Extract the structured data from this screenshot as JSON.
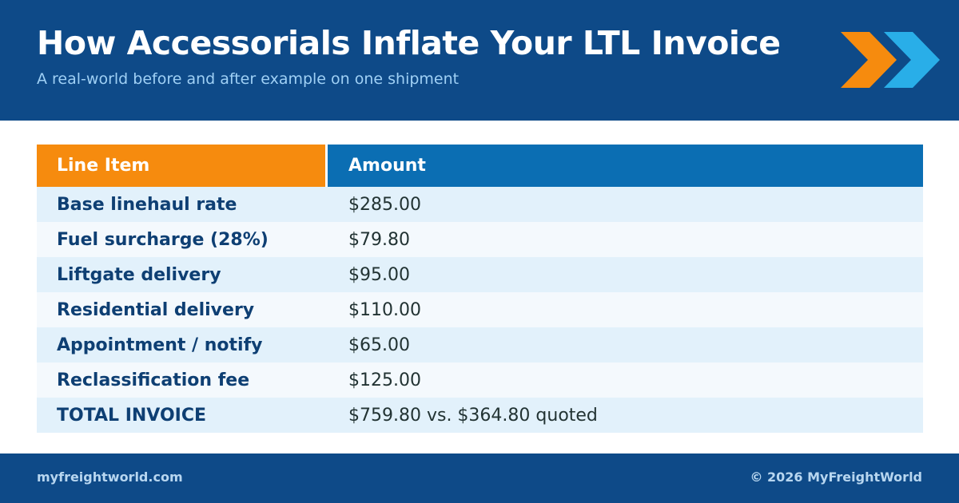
{
  "header": {
    "title": "How Accessorials Inflate Your LTL Invoice",
    "subtitle": "A real-world before and after example on one shipment"
  },
  "table": {
    "columns": [
      "Line Item",
      "Amount"
    ],
    "rows": [
      [
        "Base linehaul rate",
        "$285.00"
      ],
      [
        "Fuel surcharge (28%)",
        "$79.80"
      ],
      [
        "Liftgate delivery",
        "$95.00"
      ],
      [
        "Residential delivery",
        "$110.00"
      ],
      [
        "Appointment / notify",
        "$65.00"
      ],
      [
        "Reclassification fee",
        "$125.00"
      ],
      [
        "TOTAL INVOICE",
        "$759.80 vs. $364.80 quoted"
      ]
    ]
  },
  "footer": {
    "left": "myfreightworld.com",
    "right": "© 2026 MyFreightWorld"
  }
}
